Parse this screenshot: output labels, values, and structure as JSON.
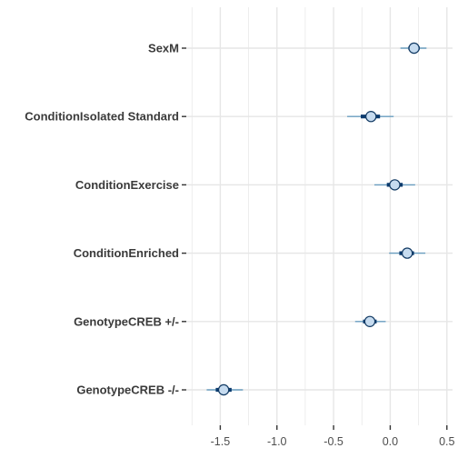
{
  "chart_data": {
    "type": "scatter",
    "subtype": "coefficient-interval-plot",
    "title": "",
    "xlabel": "",
    "ylabel": "",
    "xlim": [
      -1.8,
      0.55
    ],
    "x_ticks": [
      -1.5,
      -1.0,
      -0.5,
      0.0,
      0.5
    ],
    "x_tick_labels": [
      "-1.5",
      "-1.0",
      "-0.5",
      "0.0",
      "0.5"
    ],
    "grid": true,
    "colors": {
      "outer_interval": "#6a9ec0",
      "inner_interval": "#0b3a6e",
      "point_fill": "#c6dbef",
      "point_stroke": "#123a63",
      "gridline": "#e6e6e6"
    },
    "terms": [
      {
        "label": "SexM",
        "estimate": 0.21,
        "inner": [
          0.16,
          0.26
        ],
        "outer": [
          0.09,
          0.32
        ]
      },
      {
        "label": "ConditionIsolated Standard",
        "estimate": -0.17,
        "inner": [
          -0.26,
          -0.09
        ],
        "outer": [
          -0.38,
          0.03
        ]
      },
      {
        "label": "ConditionExercise",
        "estimate": 0.04,
        "inner": [
          -0.03,
          0.11
        ],
        "outer": [
          -0.14,
          0.22
        ]
      },
      {
        "label": "ConditionEnriched",
        "estimate": 0.15,
        "inner": [
          0.08,
          0.21
        ],
        "outer": [
          -0.01,
          0.31
        ]
      },
      {
        "label": "GenotypeCREB +/-",
        "estimate": -0.18,
        "inner": [
          -0.24,
          -0.12
        ],
        "outer": [
          -0.31,
          -0.04
        ]
      },
      {
        "label": "GenotypeCREB -/-",
        "estimate": -1.47,
        "inner": [
          -1.54,
          -1.4
        ],
        "outer": [
          -1.62,
          -1.3
        ]
      }
    ]
  }
}
